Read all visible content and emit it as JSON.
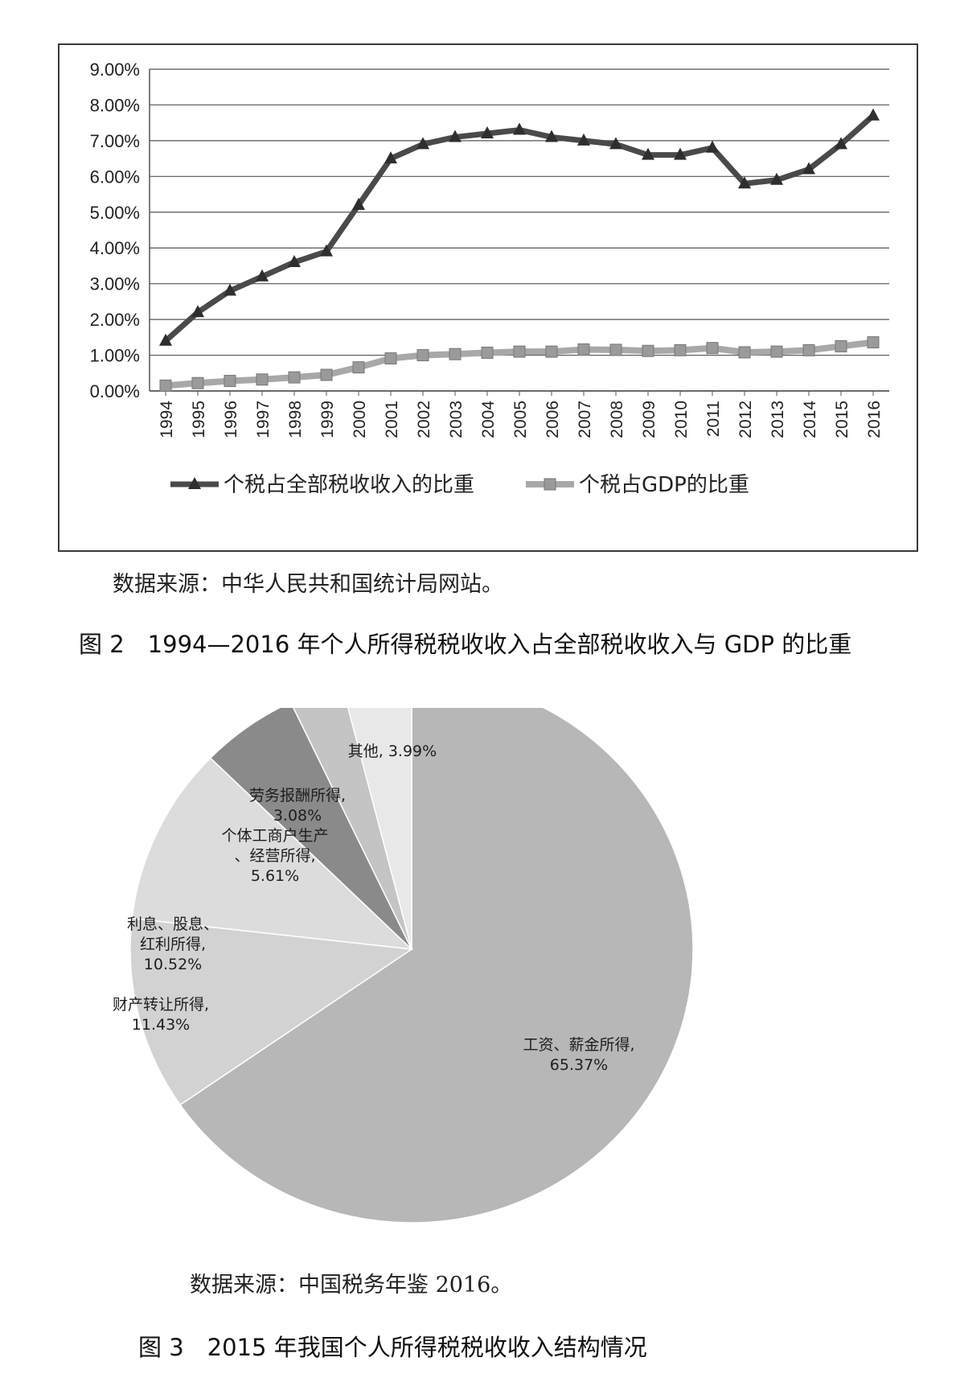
{
  "figure2": {
    "source_note": "数据来源：中华人民共和国统计局网站。",
    "caption": "图 2　1994—2016 年个人所得税税收收入占全部税收收入与 GDP 的比重"
  },
  "figure3": {
    "source_note": "数据来源：中国税务年鉴 2016。",
    "caption": "图 3　2015 年我国个人所得税税收收入结构情况"
  },
  "chart_data": [
    {
      "type": "line",
      "x": [
        "1994",
        "1995",
        "1996",
        "1997",
        "1998",
        "1999",
        "2000",
        "2001",
        "2002",
        "2003",
        "2004",
        "2005",
        "2006",
        "2007",
        "2008",
        "2009",
        "2010",
        "2011",
        "2012",
        "2013",
        "2014",
        "2015",
        "2016"
      ],
      "yticks": [
        "0.00%",
        "1.00%",
        "2.00%",
        "3.00%",
        "4.00%",
        "5.00%",
        "6.00%",
        "7.00%",
        "8.00%",
        "9.00%"
      ],
      "ylim": [
        0,
        9
      ],
      "grid": true,
      "legend_position": "bottom",
      "series": [
        {
          "name": "个税占全部税收收入的比重",
          "marker": "triangle",
          "color": "#4a4a4a",
          "values": [
            1.4,
            2.2,
            2.8,
            3.2,
            3.6,
            3.9,
            5.2,
            6.5,
            6.9,
            7.1,
            7.2,
            7.3,
            7.1,
            7.0,
            6.9,
            6.6,
            6.6,
            6.8,
            5.8,
            5.9,
            6.2,
            6.9,
            7.7
          ]
        },
        {
          "name": "个税占GDP的比重",
          "marker": "square",
          "color": "#a8a8a8",
          "values": [
            0.15,
            0.22,
            0.28,
            0.32,
            0.38,
            0.45,
            0.66,
            0.91,
            1.0,
            1.03,
            1.07,
            1.1,
            1.1,
            1.16,
            1.15,
            1.12,
            1.14,
            1.2,
            1.08,
            1.1,
            1.14,
            1.25,
            1.36
          ]
        }
      ]
    },
    {
      "type": "pie",
      "slices": [
        {
          "label": "工资、薪金所得,",
          "value_label": "65.37%",
          "value": 65.37,
          "color": "#b7b7b7"
        },
        {
          "label": "财产转让所得,",
          "value_label": "11.43%",
          "value": 11.43,
          "color": "#d2d2d2"
        },
        {
          "label": "利息、股息、红利所得,",
          "value_label": "10.52%",
          "value": 10.52,
          "color": "#dcdcdc"
        },
        {
          "label": "个体工商户生产、经营所得,",
          "value_label": "5.61%",
          "value": 5.61,
          "color": "#8a8a8a"
        },
        {
          "label": "劳务报酬所得,",
          "value_label": "3.08%",
          "value": 3.08,
          "color": "#c4c4c4"
        },
        {
          "label": "其他,",
          "value_label": "3.99%",
          "value": 3.99,
          "color": "#e8e8e8"
        }
      ]
    }
  ]
}
